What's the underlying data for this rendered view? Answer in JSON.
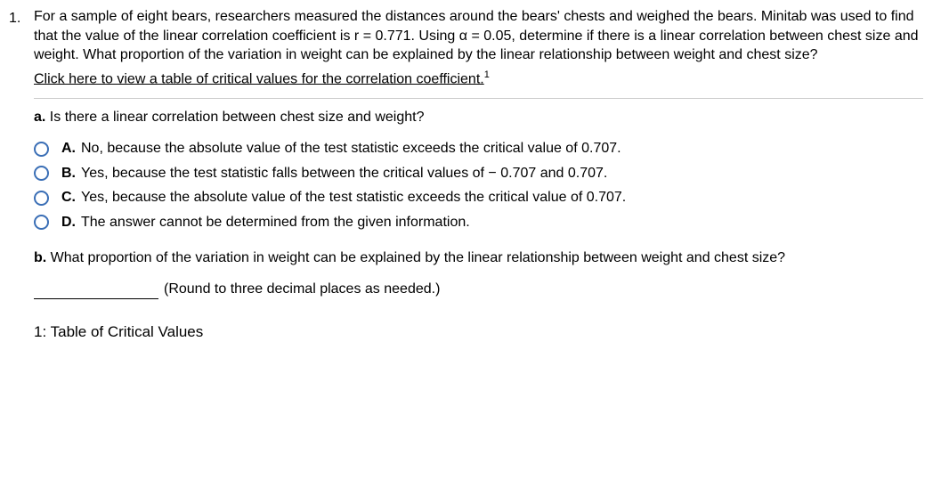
{
  "question": {
    "number": "1.",
    "stem": "For a sample of eight bears, researchers measured the distances around the bears' chests and weighed the bears. Minitab was used to find that the value of the linear correlation coefficient is r = 0.771. Using α = 0.05, determine if there is a linear correlation between chest size and weight. What proportion of the variation in weight can be explained by the linear relationship between weight and chest size?",
    "link_text": "Click here to view a table of critical values for the correlation coefficient.",
    "link_sup": "1"
  },
  "part_a": {
    "label": "a.",
    "prompt": "Is there a linear correlation between chest size and weight?",
    "options": [
      {
        "letter": "A.",
        "text": "No, because the absolute value of the test statistic exceeds the critical value of 0.707."
      },
      {
        "letter": "B.",
        "text": "Yes, because the test statistic falls between the critical values of  − 0.707 and 0.707."
      },
      {
        "letter": "C.",
        "text": "Yes, because the absolute value of the test statistic exceeds the critical value of 0.707."
      },
      {
        "letter": "D.",
        "text": "The answer cannot be determined from the given information."
      }
    ]
  },
  "part_b": {
    "label": "b.",
    "prompt": "What proportion of the variation in weight can be explained by the linear relationship between weight and chest size?",
    "hint": "(Round to three decimal places as needed.)"
  },
  "footnote": {
    "marker": "1:",
    "text": "Table of Critical Values"
  }
}
